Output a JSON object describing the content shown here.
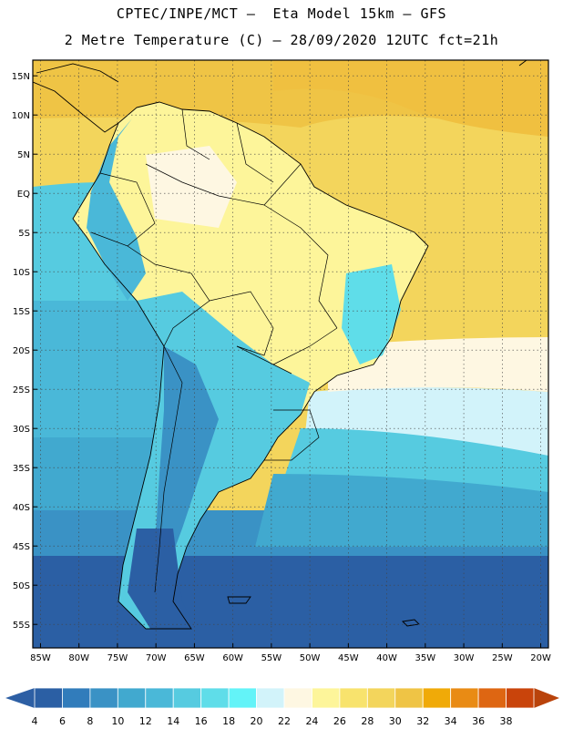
{
  "header": {
    "line1": "CPTEC/INPE/MCT –  Eta Model 15km – GFS",
    "line2": "2 Metre Temperature (C) – 28/09/2020 12UTC fct=21h"
  },
  "map": {
    "lon_range": [
      -86,
      -19
    ],
    "lat_range": [
      -58,
      17
    ],
    "lat_ticks": [
      {
        "value": 15,
        "label": "15N"
      },
      {
        "value": 10,
        "label": "10N"
      },
      {
        "value": 5,
        "label": "5N"
      },
      {
        "value": 0,
        "label": "EQ"
      },
      {
        "value": -5,
        "label": "5S"
      },
      {
        "value": -10,
        "label": "10S"
      },
      {
        "value": -15,
        "label": "15S"
      },
      {
        "value": -20,
        "label": "20S"
      },
      {
        "value": -25,
        "label": "25S"
      },
      {
        "value": -30,
        "label": "30S"
      },
      {
        "value": -35,
        "label": "35S"
      },
      {
        "value": -40,
        "label": "40S"
      },
      {
        "value": -45,
        "label": "45S"
      },
      {
        "value": -50,
        "label": "50S"
      },
      {
        "value": -55,
        "label": "55S"
      }
    ],
    "lon_ticks": [
      {
        "value": -85,
        "label": "85W"
      },
      {
        "value": -80,
        "label": "80W"
      },
      {
        "value": -75,
        "label": "75W"
      },
      {
        "value": -70,
        "label": "70W"
      },
      {
        "value": -65,
        "label": "65W"
      },
      {
        "value": -60,
        "label": "60W"
      },
      {
        "value": -55,
        "label": "55W"
      },
      {
        "value": -50,
        "label": "50W"
      },
      {
        "value": -45,
        "label": "45W"
      },
      {
        "value": -40,
        "label": "40W"
      },
      {
        "value": -35,
        "label": "35W"
      },
      {
        "value": -30,
        "label": "30W"
      },
      {
        "value": -25,
        "label": "25W"
      },
      {
        "value": -20,
        "label": "20W"
      }
    ]
  },
  "colorbar": {
    "bins": [
      {
        "label": "4",
        "color": "#2b5fa4"
      },
      {
        "label": "6",
        "color": "#317cbb"
      },
      {
        "label": "8",
        "color": "#3a92c5"
      },
      {
        "label": "10",
        "color": "#41a9cf"
      },
      {
        "label": "12",
        "color": "#4ab8d8"
      },
      {
        "label": "14",
        "color": "#56cbe0"
      },
      {
        "label": "16",
        "color": "#5fdde9"
      },
      {
        "label": "18",
        "color": "#63f3f8"
      },
      {
        "label": "20",
        "color": "#d2f3fa"
      },
      {
        "label": "22",
        "color": "#fef7e2"
      },
      {
        "label": "24",
        "color": "#fdf59a"
      },
      {
        "label": "26",
        "color": "#f8e36d"
      },
      {
        "label": "28",
        "color": "#f3d55c"
      },
      {
        "label": "30",
        "color": "#efc445"
      },
      {
        "label": "32",
        "color": "#f0aa08"
      },
      {
        "label": "34",
        "color": "#e98b14"
      },
      {
        "label": "36",
        "color": "#de6612"
      },
      {
        "label": "38",
        "color": "#c9440b"
      }
    ],
    "low_color": "#2d5fa4",
    "high_color": "#b9430b"
  }
}
